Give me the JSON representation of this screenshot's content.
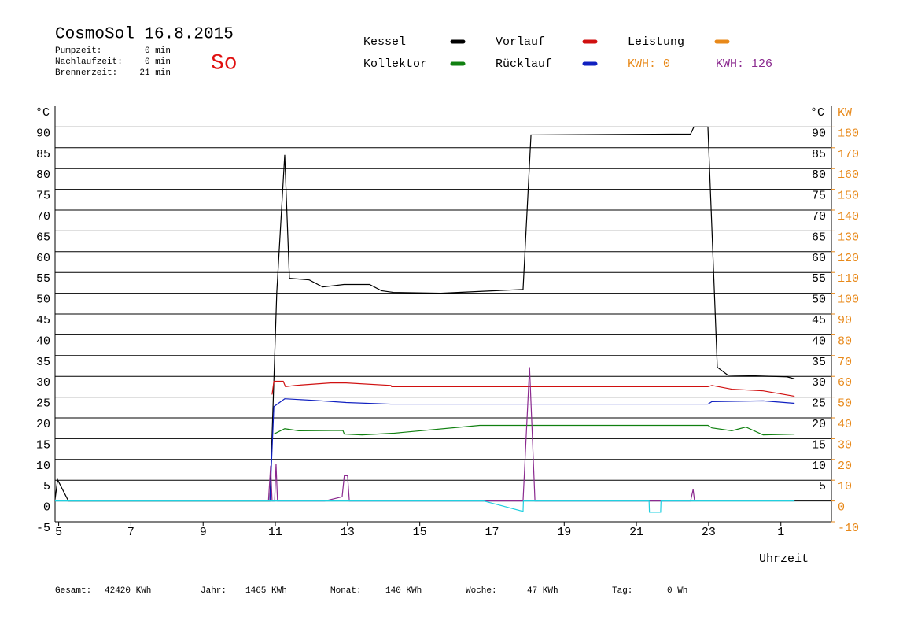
{
  "header": {
    "title": "CosmoSol 16.8.2015",
    "stats": [
      [
        "Pumpzeit:",
        "0 min"
      ],
      [
        "Nachlaufzeit:",
        "0 min"
      ],
      [
        "Brennerzeit:",
        "21 min"
      ]
    ],
    "day": "So"
  },
  "kwh": [
    {
      "text": "KWH: 0",
      "color": "#e8891a"
    },
    {
      "text": "KWH: 126",
      "color": "#8b2a8f"
    }
  ],
  "footer": [
    [
      "Gesamt:",
      "42420 KWh"
    ],
    [
      "Jahr:",
      "1465 KWh"
    ],
    [
      "Monat:",
      "140 KWh"
    ],
    [
      "Woche:",
      "47 KWh"
    ],
    [
      "Tag:",
      "0 Wh"
    ]
  ],
  "chart_data": {
    "type": "line",
    "y_label": "°C",
    "y2_label": "KW",
    "x_label": "Uhrzeit",
    "grid": true,
    "xlim": [
      4.9,
      26.4
    ],
    "xticks": [
      5,
      7,
      9,
      11,
      13,
      15,
      17,
      19,
      21,
      23,
      {
        "value": 25,
        "label": "1"
      }
    ],
    "ylim": [
      -5,
      95
    ],
    "yticks": [
      -5,
      0,
      5,
      10,
      15,
      20,
      25,
      30,
      35,
      40,
      45,
      50,
      55,
      60,
      65,
      70,
      75,
      80,
      85,
      90
    ],
    "yticks_right": [
      5,
      10,
      15,
      20,
      25,
      30,
      35,
      40,
      45,
      50,
      55,
      60,
      65,
      70,
      75,
      80,
      85,
      90
    ],
    "y2lim": [
      -10,
      190
    ],
    "y2ticks": [
      -10,
      0,
      10,
      20,
      30,
      40,
      50,
      60,
      70,
      80,
      90,
      100,
      110,
      120,
      130,
      140,
      150,
      160,
      170,
      180
    ],
    "series": [
      {
        "name": "Kessel",
        "color": "#000000",
        "x": [
          4.9,
          4.97,
          5.27,
          10.85,
          11.04,
          11.26,
          11.39,
          11.94,
          12.31,
          12.9,
          13.61,
          13.94,
          14.27,
          15.58,
          17.86,
          18.08,
          22.5,
          22.59,
          22.98,
          23.24,
          23.53,
          25.16,
          25.38
        ],
        "values": [
          0.4,
          5.1,
          0,
          0,
          50.2,
          83.3,
          53.6,
          53.2,
          51.5,
          52.1,
          52.1,
          50.6,
          50.2,
          50,
          50.9,
          88.1,
          88.3,
          90,
          90,
          32.2,
          30.3,
          29.9,
          29.4
        ]
      },
      {
        "name": "Vorlauf",
        "color": "#d01010",
        "x": [
          10.91,
          10.96,
          11.22,
          11.28,
          11.55,
          12.53,
          12.96,
          14.2,
          14.22,
          22.98,
          23.09,
          23.64,
          24.51,
          25.38
        ],
        "values": [
          25.6,
          28.8,
          28.8,
          27.5,
          27.8,
          28.4,
          28.4,
          27.8,
          27.5,
          27.5,
          27.8,
          26.9,
          26.5,
          25.2
        ]
      },
      {
        "name": "Leistung",
        "color": "#e8891a",
        "x": [],
        "values": []
      },
      {
        "name": "Kollektor",
        "color": "#108010",
        "x": [
          10.96,
          11.26,
          11.65,
          12.87,
          12.91,
          13.4,
          14.27,
          16.66,
          22.98,
          23.09,
          23.64,
          24.03,
          24.51,
          25.38
        ],
        "values": [
          16.1,
          17.4,
          16.9,
          17.0,
          16.1,
          15.9,
          16.3,
          18.2,
          18.2,
          17.6,
          16.9,
          17.8,
          15.9,
          16.1
        ]
      },
      {
        "name": "Rücklauf",
        "color": "#1020c0",
        "x": [
          10.85,
          10.96,
          11.26,
          12.09,
          12.96,
          14.2,
          22.98,
          23.09,
          24.51,
          25.38
        ],
        "values": [
          0,
          22.7,
          24.6,
          24.2,
          23.7,
          23.3,
          23.3,
          23.9,
          24.1,
          23.5
        ]
      },
      {
        "color": "#8b2a8f",
        "x": [
          10.81,
          10.87,
          10.91,
          10.98,
          11.02,
          11.06,
          12.37,
          12.85,
          12.91,
          13.0,
          13.05,
          17.86,
          18.04,
          18.19,
          22.5,
          22.57,
          22.61
        ],
        "values": [
          0,
          8.5,
          0,
          0,
          8.9,
          0,
          0,
          1,
          6.1,
          6.1,
          0,
          0,
          32.2,
          0,
          0,
          2.8,
          0
        ]
      },
      {
        "color": "#20d0e0",
        "x": [
          4.9,
          16.77,
          17.86,
          17.87,
          21.35,
          21.36,
          21.67,
          21.68,
          25.38
        ],
        "values": [
          0,
          0,
          -2.5,
          0,
          0,
          -2.7,
          -2.7,
          0,
          0
        ]
      }
    ]
  }
}
